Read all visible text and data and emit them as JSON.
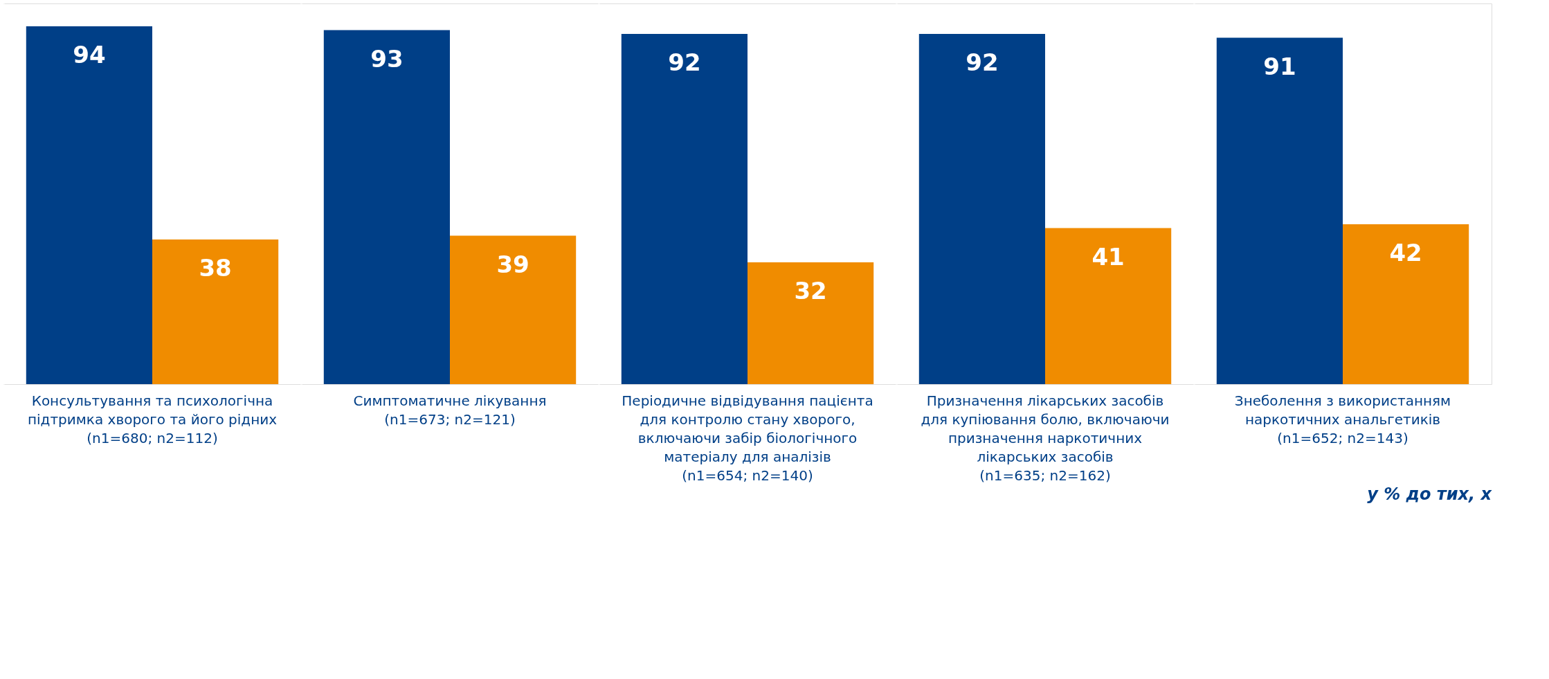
{
  "chart_data": {
    "type": "bar",
    "categories": [
      "Консультування та психологічна\nпідтримка хворого та його рідних\n(n1=680; n2=112)",
      "Симптоматичне лікування\n(n1=673; n2=121)",
      "Періодичне відвідування пацієнта\nдля контролю стану хворого,\nвключаючи забір біологічного\nматеріалу для аналізів\n(n1=654; n2=140)",
      "Призначення лікарських засобів\nдля купіювання болю, включаючи\nпризначення наркотичних\nлікарських засобів\n(n1=635; n2=162)",
      "Знеболення з використанням\nнаркотичних анальгетиків\n(n1=652; n2=143)"
    ],
    "series": [
      {
        "color": "#003f87",
        "values": [
          94,
          93,
          92,
          92,
          91
        ]
      },
      {
        "color": "#f08c00",
        "values": [
          38,
          39,
          32,
          41,
          42
        ]
      }
    ],
    "data_labels": true,
    "legend": false,
    "grid": "x",
    "annotations": [
      "у % до тих, х"
    ]
  }
}
